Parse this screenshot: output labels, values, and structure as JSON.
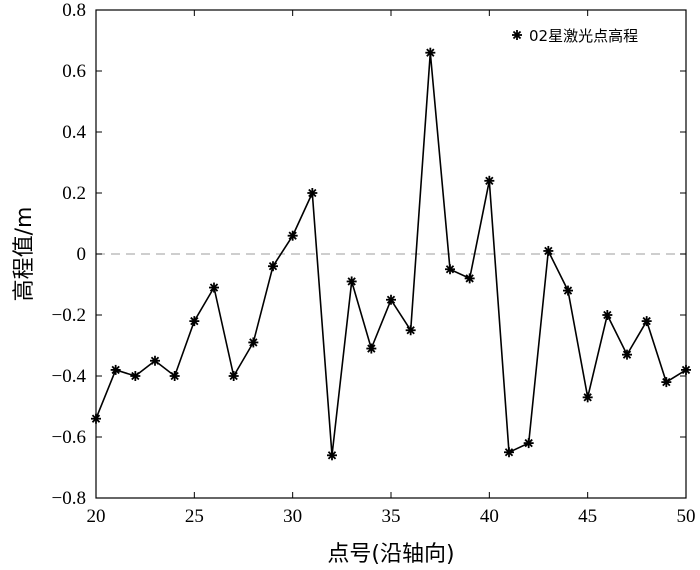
{
  "chart_data": {
    "type": "line",
    "xlabel": "点号(沿轴向)",
    "ylabel": "高程值/m",
    "xlim": [
      20,
      50
    ],
    "ylim": [
      -0.8,
      0.8
    ],
    "xticks": [
      20,
      25,
      30,
      35,
      40,
      45,
      50
    ],
    "yticks": [
      0.8,
      0.6,
      0.4,
      0.2,
      0,
      -0.2,
      -0.4,
      -0.6,
      -0.8
    ],
    "ytick_labels": [
      "0.8",
      "0.6",
      "0.4",
      "0.2",
      "0",
      "−0.2",
      "−0.4",
      "−0.6",
      "−0.8"
    ],
    "reference_line": {
      "y": 0,
      "style": "dashed",
      "color": "#b0b0b0"
    },
    "grid": false,
    "legend": {
      "position": "top-right",
      "marker": "asterisk"
    },
    "series": [
      {
        "name": "02星激光点高程",
        "color": "#000000",
        "marker": "asterisk",
        "x": [
          20,
          21,
          22,
          23,
          24,
          25,
          26,
          27,
          28,
          29,
          30,
          31,
          32,
          33,
          34,
          35,
          36,
          37,
          38,
          39,
          40,
          41,
          42,
          43,
          44,
          45,
          46,
          47,
          48,
          49,
          50
        ],
        "y": [
          -0.54,
          -0.38,
          -0.4,
          -0.35,
          -0.4,
          -0.22,
          -0.11,
          -0.4,
          -0.29,
          -0.04,
          0.06,
          0.2,
          -0.66,
          -0.09,
          -0.31,
          -0.15,
          -0.25,
          0.66,
          -0.05,
          -0.08,
          0.24,
          -0.65,
          -0.62,
          0.01,
          -0.12,
          -0.47,
          -0.2,
          -0.33,
          -0.22,
          -0.42,
          -0.38
        ]
      }
    ]
  }
}
